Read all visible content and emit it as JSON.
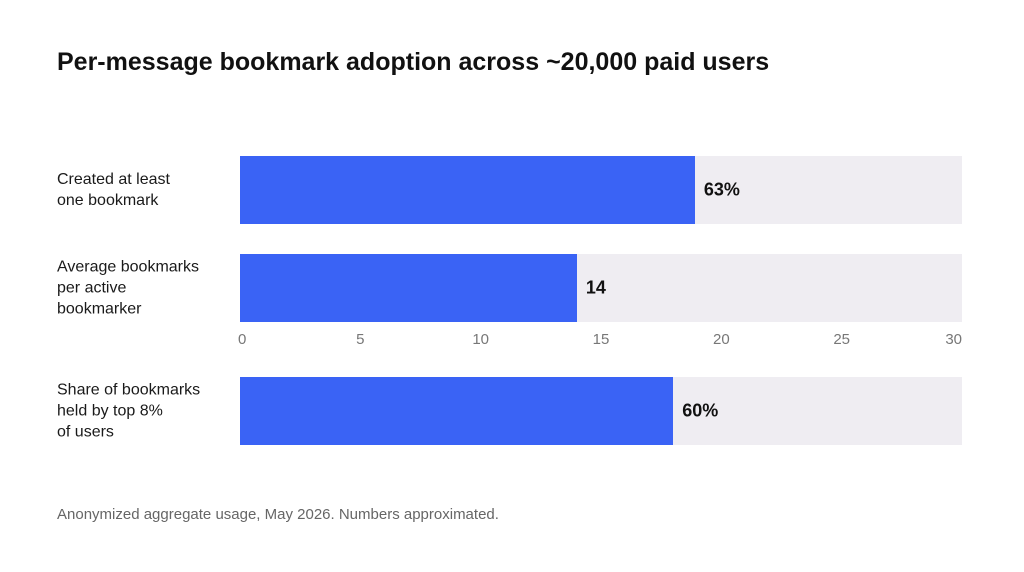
{
  "title": "Per-message bookmark adoption across ~20,000 paid users",
  "footnote": "Anonymized aggregate usage, May 2026. Numbers approximated.",
  "chart_data": [
    {
      "type": "bar",
      "orientation": "horizontal",
      "categories": [
        "Created at least\none bookmark"
      ],
      "values": [
        63
      ],
      "value_labels": [
        "63%"
      ],
      "xlim": [
        0,
        100
      ],
      "color": "#3a63f5",
      "track_color": "#efedf2"
    },
    {
      "type": "bar",
      "orientation": "horizontal",
      "categories": [
        "Average bookmarks\nper active\nbookmarker"
      ],
      "values": [
        14
      ],
      "xlim": [
        0,
        30
      ],
      "xticks": [
        0,
        5,
        10,
        15,
        20,
        25,
        30
      ],
      "color": "#3a63f5",
      "track_color": "#efedf2"
    },
    {
      "type": "bar",
      "orientation": "horizontal",
      "categories": [
        "Share of bookmarks\nheld by top 8%\nof users"
      ],
      "values": [
        60
      ],
      "value_labels": [
        "60%"
      ],
      "xlim": [
        0,
        100
      ],
      "color": "#3a63f5",
      "track_color": "#efedf2"
    }
  ]
}
